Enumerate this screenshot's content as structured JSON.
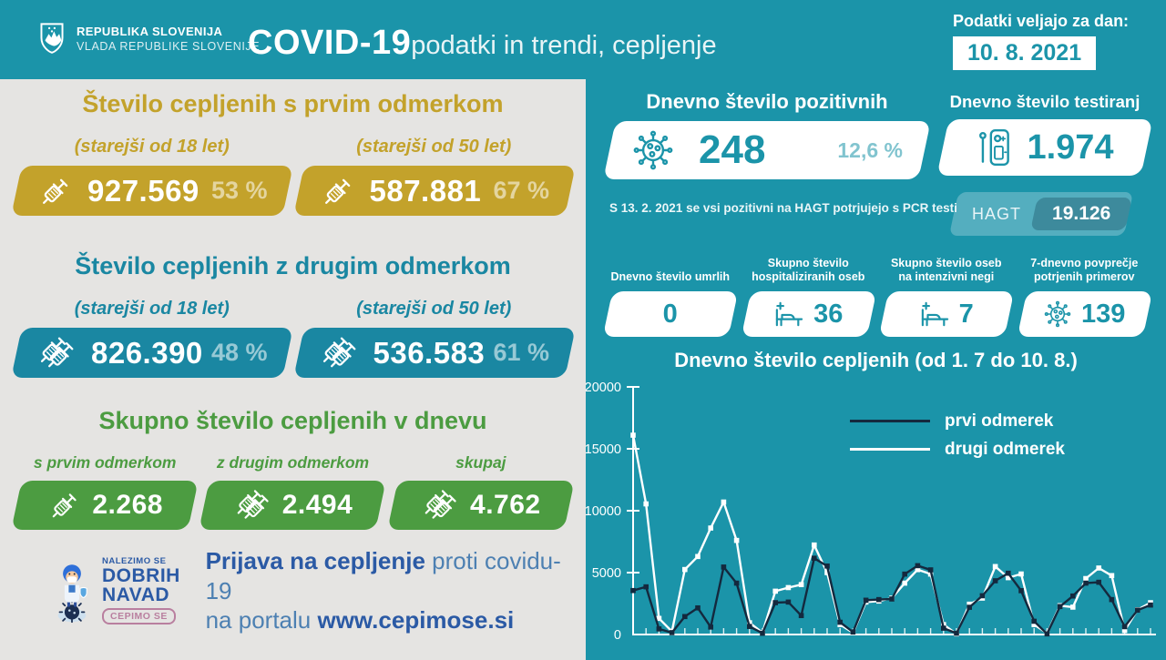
{
  "colors": {
    "teal": "#1b94a9",
    "tealbox": "#1a87a2",
    "gold": "#c3a22b",
    "green": "#4c9c41",
    "panel": "#e5e4e2",
    "navy": "#14293e",
    "blue": "#2b5aa5",
    "bluelight": "#4d80b2",
    "pill": "#b97f9f"
  },
  "header": {
    "logo_line1": "REPUBLIKA SLOVENIJA",
    "logo_line2": "VLADA REPUBLIKE SLOVENIJE",
    "title_bold": "COVID-19",
    "title_rest": " podatki in trendi, cepljenje",
    "date_label": "Podatki veljajo za dan:",
    "date_value": "10. 8. 2021"
  },
  "left": {
    "first_dose": {
      "title": "Število cepljenih s prvim odmerkom",
      "groups": [
        {
          "label": "(starejši od 18 let)",
          "value": "927.569",
          "pct": "53 %"
        },
        {
          "label": "(starejši od 50 let)",
          "value": "587.881",
          "pct": "67 %"
        }
      ]
    },
    "second_dose": {
      "title": "Število cepljenih z drugim odmerkom",
      "groups": [
        {
          "label": "(starejši od 18 let)",
          "value": "826.390",
          "pct": "48 %"
        },
        {
          "label": "(starejši od 50 let)",
          "value": "536.583",
          "pct": "61 %"
        }
      ]
    },
    "daily_total": {
      "title": "Skupno število cepljenih v dnevu",
      "items": [
        {
          "label": "s prvim odmerkom",
          "value": "2.268"
        },
        {
          "label": "z drugim odmerkom",
          "value": "2.494"
        },
        {
          "label": "skupaj",
          "value": "4.762"
        }
      ]
    },
    "campaign": {
      "badge_line1": "NALEZIMO SE",
      "badge_line2": "DOBRIH",
      "badge_line3": "NAVAD",
      "badge_pill": "CEPIMO SE",
      "cta_bold": "Prijava na cepljenje",
      "cta_rest": " proti covidu-19",
      "cta_line2_prefix": "na portalu ",
      "cta_url": "www.cepimose.si"
    }
  },
  "right": {
    "positives": {
      "title": "Dnevno število pozitivnih",
      "value": "248",
      "pct": "12,6 %",
      "icon": "virus-icon"
    },
    "tests": {
      "title": "Dnevno število testiranj",
      "value": "1.974",
      "icon": "rapid-test-icon"
    },
    "note": "S 13. 2. 2021 se vsi pozitivni na HAGT potrjujejo s PCR testi",
    "hagt": {
      "label": "HAGT",
      "value": "19.126"
    },
    "stats": [
      {
        "label": "Dnevno število umrlih",
        "value": "0",
        "icon": "none"
      },
      {
        "label": "Skupno število hospitaliziranih oseb",
        "value": "36",
        "icon": "hospital-bed-icon"
      },
      {
        "label": "Skupno število oseb na intenzivni negi",
        "value": "7",
        "icon": "hospital-bed-icon"
      },
      {
        "label": "7-dnevno povprečje potrjenih primerov",
        "value": "139",
        "icon": "virus-icon"
      }
    ]
  },
  "chart_data": {
    "type": "line",
    "title": "Dnevno število cepljenih (od 1. 7 do 10. 8.)",
    "x_start": "1. 7.",
    "x_end": "10. 8.",
    "n_days": 41,
    "ylim": [
      0,
      20000
    ],
    "yticks": [
      0,
      5000,
      10000,
      15000,
      20000
    ],
    "grid": false,
    "legend_position": "top-right",
    "series": [
      {
        "name": "prvi odmerek",
        "color": "#14293e",
        "values": [
          3550,
          3850,
          450,
          150,
          1450,
          2150,
          600,
          5450,
          4150,
          650,
          100,
          2570,
          2620,
          1530,
          6160,
          5530,
          990,
          200,
          2770,
          2820,
          2870,
          4880,
          5560,
          5220,
          510,
          100,
          2200,
          3130,
          4340,
          4950,
          3540,
          1070,
          50,
          2260,
          3110,
          4150,
          4220,
          2820,
          630,
          1970,
          2380
        ]
      },
      {
        "name": "drugi odmerek",
        "color": "#ffffff",
        "values": [
          16100,
          10550,
          1300,
          250,
          5250,
          6300,
          8600,
          10700,
          7600,
          950,
          150,
          3500,
          3790,
          4030,
          7230,
          5000,
          800,
          150,
          2620,
          2700,
          2940,
          4150,
          5240,
          4880,
          800,
          50,
          2450,
          2940,
          5490,
          4590,
          4890,
          800,
          100,
          2330,
          2210,
          4520,
          5370,
          4760,
          320,
          2000,
          2570
        ]
      }
    ]
  }
}
